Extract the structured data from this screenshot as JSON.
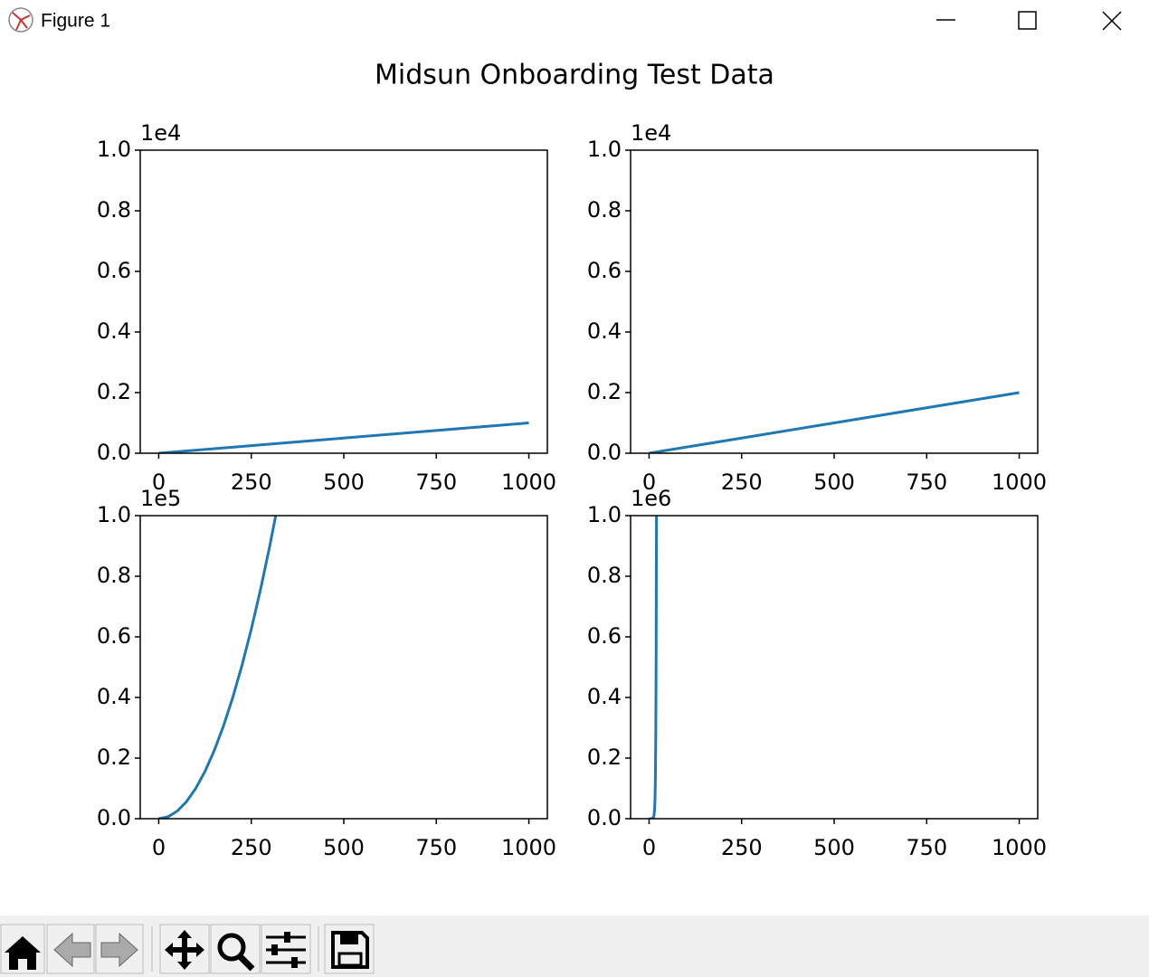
{
  "window_title": "Figure 1",
  "figure_title": "Midsun Onboarding Test Data",
  "chart_data": [
    {
      "type": "line",
      "offset_text": "1e4",
      "color": "#1f77b4",
      "x": [
        0,
        250,
        500,
        750,
        1000
      ],
      "values": [
        0,
        0.025,
        0.05,
        0.075,
        0.1
      ],
      "xlim": [
        -50,
        1050
      ],
      "xticks": [
        0,
        250,
        500,
        750,
        1000
      ],
      "ylim": [
        0,
        1
      ],
      "yticks": [
        {
          "value": 0,
          "label": "0.0"
        },
        {
          "value": 0.2,
          "label": "0.2"
        },
        {
          "value": 0.4,
          "label": "0.4"
        },
        {
          "value": 0.6,
          "label": "0.6"
        },
        {
          "value": 0.8,
          "label": "0.8"
        },
        {
          "value": 1,
          "label": "1.0"
        }
      ]
    },
    {
      "type": "line",
      "offset_text": "1e4",
      "color": "#1f77b4",
      "x": [
        0,
        250,
        500,
        750,
        1000
      ],
      "values": [
        0,
        0.05,
        0.1,
        0.15,
        0.2
      ],
      "xlim": [
        -50,
        1050
      ],
      "xticks": [
        0,
        250,
        500,
        750,
        1000
      ],
      "ylim": [
        0,
        1
      ],
      "yticks": [
        {
          "value": 0,
          "label": "0.0"
        },
        {
          "value": 0.2,
          "label": "0.2"
        },
        {
          "value": 0.4,
          "label": "0.4"
        },
        {
          "value": 0.6,
          "label": "0.6"
        },
        {
          "value": 0.8,
          "label": "0.8"
        },
        {
          "value": 1,
          "label": "1.0"
        }
      ]
    },
    {
      "type": "line",
      "offset_text": "1e5",
      "color": "#1f77b4",
      "x": [
        0,
        25,
        50,
        75,
        100,
        125,
        150,
        175,
        200,
        225,
        250,
        275,
        300,
        325
      ],
      "values": [
        0,
        0.00625,
        0.025,
        0.05625,
        0.1,
        0.15625,
        0.225,
        0.30625,
        0.4,
        0.50625,
        0.625,
        0.75625,
        0.9,
        1.05625
      ],
      "xlim": [
        -50,
        1050
      ],
      "xticks": [
        0,
        250,
        500,
        750,
        1000
      ],
      "ylim": [
        0,
        1
      ],
      "yticks": [
        {
          "value": 0,
          "label": "0.0"
        },
        {
          "value": 0.2,
          "label": "0.2"
        },
        {
          "value": 0.4,
          "label": "0.4"
        },
        {
          "value": 0.6,
          "label": "0.6"
        },
        {
          "value": 0.8,
          "label": "0.8"
        },
        {
          "value": 1,
          "label": "1.0"
        }
      ]
    },
    {
      "type": "line",
      "offset_text": "1e6",
      "color": "#1f77b4",
      "x": [
        0,
        5,
        10,
        13,
        15,
        16,
        17,
        18,
        19,
        20
      ],
      "values": [
        0,
        0,
        0.001,
        0.008,
        0.033,
        0.066,
        0.131,
        0.262,
        0.524,
        1.049
      ],
      "xlim": [
        -50,
        1050
      ],
      "xticks": [
        0,
        250,
        500,
        750,
        1000
      ],
      "ylim": [
        0,
        1
      ],
      "yticks": [
        {
          "value": 0,
          "label": "0.0"
        },
        {
          "value": 0.2,
          "label": "0.2"
        },
        {
          "value": 0.4,
          "label": "0.4"
        },
        {
          "value": 0.6,
          "label": "0.6"
        },
        {
          "value": 0.8,
          "label": "0.8"
        },
        {
          "value": 1,
          "label": "1.0"
        }
      ]
    }
  ]
}
